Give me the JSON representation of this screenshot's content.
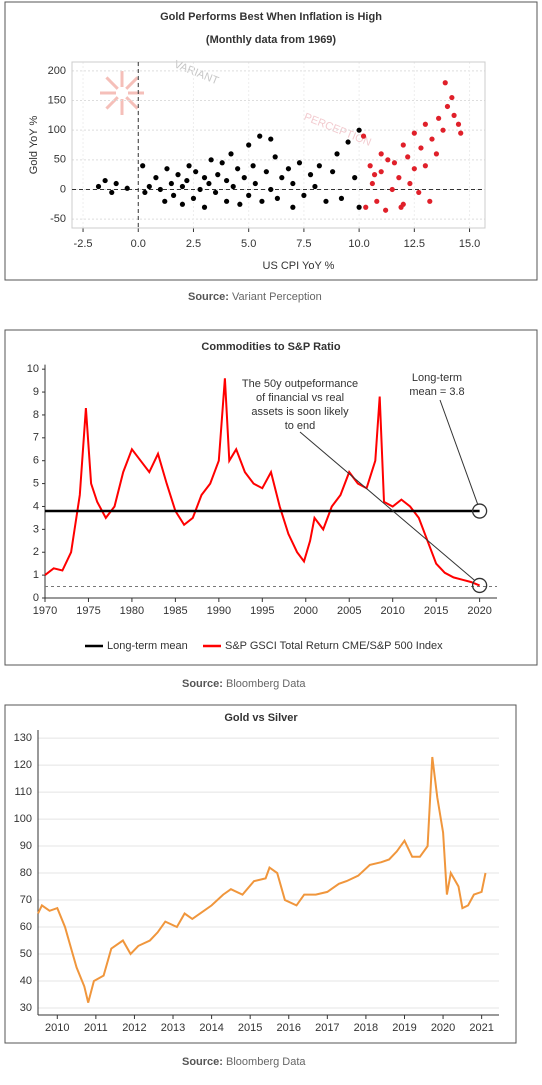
{
  "chart_data": [
    {
      "type": "scatter",
      "title": "Gold Performs Best When Inflation is High",
      "subtitle": "(Monthly data from 1969)",
      "x_label": "US CPI YoY %",
      "y_label": "Gold YoY %",
      "watermark": [
        "VARIANT",
        "PERCEPTION"
      ],
      "source_label": "Source:",
      "source": "Variant Perception",
      "xlim": [
        -3,
        15.7
      ],
      "ylim": [
        -65,
        215
      ],
      "xticks": [
        -2.5,
        {
          "value": 0,
          "label": "0.0"
        },
        2.5,
        {
          "value": 5,
          "label": "5.0"
        },
        7.5,
        {
          "value": 10,
          "label": "10.0"
        },
        12.5,
        {
          "value": 15,
          "label": "15.0"
        }
      ],
      "yticks": [
        -50,
        0,
        50,
        100,
        150,
        200
      ],
      "grid": true,
      "series": [
        {
          "color": "#000000",
          "x": [
            -1.8,
            -1.5,
            -1.2,
            -1,
            -0.5,
            0.2,
            0.3,
            0.5,
            0.8,
            1,
            1.2,
            1.3,
            1.5,
            1.6,
            1.8,
            2,
            2,
            2.2,
            2.3,
            2.5,
            2.6,
            2.8,
            3,
            3,
            3.2,
            3.3,
            3.5,
            3.6,
            3.8,
            4,
            4,
            4.2,
            4.3,
            4.5,
            4.6,
            4.8,
            5,
            5,
            5.2,
            5.3,
            5.5,
            5.6,
            5.8,
            6,
            6,
            6.2,
            6.3,
            6.5,
            6.8,
            7,
            7,
            7.3,
            7.5,
            7.8,
            8,
            8.2,
            8.5,
            8.8,
            9,
            9.2,
            9.5,
            9.8,
            10,
            10
          ],
          "values": [
            5,
            15,
            -5,
            10,
            2,
            40,
            -5,
            5,
            20,
            0,
            -20,
            35,
            10,
            -10,
            25,
            5,
            -25,
            15,
            40,
            -15,
            30,
            0,
            20,
            -30,
            10,
            50,
            -5,
            25,
            45,
            -20,
            15,
            60,
            5,
            35,
            -25,
            20,
            75,
            -10,
            40,
            10,
            90,
            -20,
            30,
            85,
            0,
            55,
            -15,
            20,
            35,
            -30,
            10,
            45,
            -10,
            25,
            5,
            40,
            -20,
            30,
            60,
            -15,
            80,
            20,
            100,
            -30
          ]
        },
        {
          "color": "#e0202a",
          "x": [
            10.2,
            10.3,
            10.5,
            10.6,
            10.8,
            11,
            11,
            11.2,
            11.3,
            11.5,
            11.6,
            11.8,
            12,
            12,
            12.2,
            12.3,
            12.5,
            12.5,
            12.7,
            12.8,
            13,
            13,
            13.2,
            13.3,
            13.5,
            13.6,
            13.8,
            13.9,
            14,
            14.2,
            14.3,
            14.5,
            14.6,
            11.9,
            10.7
          ],
          "values": [
            90,
            -30,
            40,
            10,
            -20,
            60,
            30,
            -35,
            50,
            0,
            45,
            20,
            75,
            -25,
            55,
            10,
            95,
            35,
            -5,
            70,
            110,
            40,
            -20,
            85,
            60,
            120,
            100,
            180,
            140,
            155,
            125,
            110,
            95,
            -30,
            25
          ]
        }
      ]
    },
    {
      "type": "line",
      "title": "Commodities to S&P Ratio",
      "source_label": "Source:",
      "source": "Bloomberg Data",
      "annotations": [
        [
          "The 50y outpeformance",
          "of financial vs real",
          "assets is soon likely",
          "to end"
        ],
        [
          "Long-term",
          "mean = 3.8"
        ]
      ],
      "xlim": [
        1970,
        2022
      ],
      "ylim": [
        0,
        10.2
      ],
      "xticks": [
        1970,
        1975,
        1980,
        1985,
        1990,
        1995,
        2000,
        2005,
        2010,
        2015,
        2020
      ],
      "yticks": [
        0,
        1,
        2,
        3,
        4,
        5,
        6,
        7,
        8,
        9,
        10
      ],
      "grid": false,
      "mean_line": {
        "name": "Long-term mean",
        "value": 3.8,
        "color": "#000000"
      },
      "dashed_line": 0.5,
      "markers": [
        {
          "x": 2020,
          "y": 3.8
        },
        {
          "x": 2020,
          "y": 0.55
        }
      ],
      "series": [
        {
          "name": "S&P GSCI Total Return CME/S&P 500 Index",
          "color": "#ff0000",
          "x": [
            1970,
            1971,
            1972,
            1973,
            1974,
            1974.7,
            1975.3,
            1976,
            1977,
            1978,
            1979,
            1980,
            1981,
            1982,
            1983,
            1984,
            1985,
            1986,
            1987,
            1988,
            1989,
            1990,
            1990.7,
            1991.2,
            1992,
            1993,
            1994,
            1995,
            1996,
            1997,
            1998,
            1999,
            1999.8,
            2000.5,
            2001,
            2002,
            2003,
            2004,
            2005,
            2006,
            2007,
            2008,
            2008.5,
            2009,
            2010,
            2011,
            2012,
            2013,
            2014,
            2015,
            2016,
            2017,
            2018,
            2019,
            2020
          ],
          "values": [
            1.0,
            1.3,
            1.2,
            2.0,
            4.5,
            8.3,
            5.0,
            4.2,
            3.5,
            4.0,
            5.5,
            6.5,
            6.0,
            5.5,
            6.3,
            5.0,
            3.8,
            3.2,
            3.5,
            4.5,
            5.0,
            6.0,
            9.6,
            6.0,
            6.5,
            5.5,
            5.0,
            4.8,
            5.5,
            4.0,
            2.8,
            2.0,
            1.6,
            2.5,
            3.5,
            3.0,
            4.0,
            4.5,
            5.5,
            5.0,
            4.8,
            6.0,
            8.8,
            4.2,
            4.0,
            4.3,
            4.0,
            3.5,
            2.5,
            1.5,
            1.1,
            0.9,
            0.8,
            0.7,
            0.55
          ]
        }
      ]
    },
    {
      "type": "line",
      "title": "Gold vs Silver",
      "source_label": "Source:",
      "source": "Bloomberg Data",
      "xlim": [
        2010,
        2021.95
      ],
      "ylim": [
        27.4,
        133
      ],
      "xticks": [
        {
          "value": 2010.5,
          "label": "2010"
        },
        {
          "value": 2011.5,
          "label": "2011"
        },
        {
          "value": 2012.5,
          "label": "2012"
        },
        {
          "value": 2013.5,
          "label": "2013"
        },
        {
          "value": 2014.5,
          "label": "2014"
        },
        {
          "value": 2015.5,
          "label": "2015"
        },
        {
          "value": 2016.5,
          "label": "2016"
        },
        {
          "value": 2017.5,
          "label": "2017"
        },
        {
          "value": 2018.5,
          "label": "2018"
        },
        {
          "value": 2019.5,
          "label": "2019"
        },
        {
          "value": 2020.5,
          "label": "2020"
        },
        {
          "value": 2021.5,
          "label": "2021"
        }
      ],
      "yticks": [
        30,
        40,
        50,
        60,
        70,
        80,
        90,
        100,
        110,
        120,
        130
      ],
      "grid": true,
      "series": [
        {
          "color": "#f0963c",
          "x": [
            2010,
            2010.1,
            2010.3,
            2010.5,
            2010.7,
            2010.9,
            2011,
            2011.2,
            2011.3,
            2011.45,
            2011.7,
            2011.9,
            2012.2,
            2012.4,
            2012.6,
            2012.9,
            2013.1,
            2013.3,
            2013.6,
            2013.8,
            2014,
            2014.3,
            2014.5,
            2014.8,
            2015,
            2015.3,
            2015.6,
            2015.9,
            2016,
            2016.2,
            2016.4,
            2016.7,
            2016.9,
            2017.2,
            2017.5,
            2017.8,
            2018,
            2018.3,
            2018.6,
            2018.9,
            2019.1,
            2019.3,
            2019.5,
            2019.7,
            2019.9,
            2020.1,
            2020.22,
            2020.35,
            2020.5,
            2020.6,
            2020.7,
            2020.9,
            2021,
            2021.15,
            2021.3,
            2021.5,
            2021.6
          ],
          "values": [
            65,
            68,
            66,
            67,
            60,
            50,
            45,
            38,
            32,
            40,
            42,
            52,
            55,
            50,
            53,
            55,
            58,
            62,
            60,
            65,
            63,
            66,
            68,
            72,
            74,
            72,
            77,
            78,
            82,
            80,
            70,
            68,
            72,
            72,
            73,
            76,
            77,
            79,
            83,
            84,
            85,
            88,
            92,
            86,
            86,
            90,
            123,
            108,
            95,
            72,
            80,
            75,
            67,
            68,
            72,
            73,
            80
          ]
        }
      ]
    }
  ]
}
